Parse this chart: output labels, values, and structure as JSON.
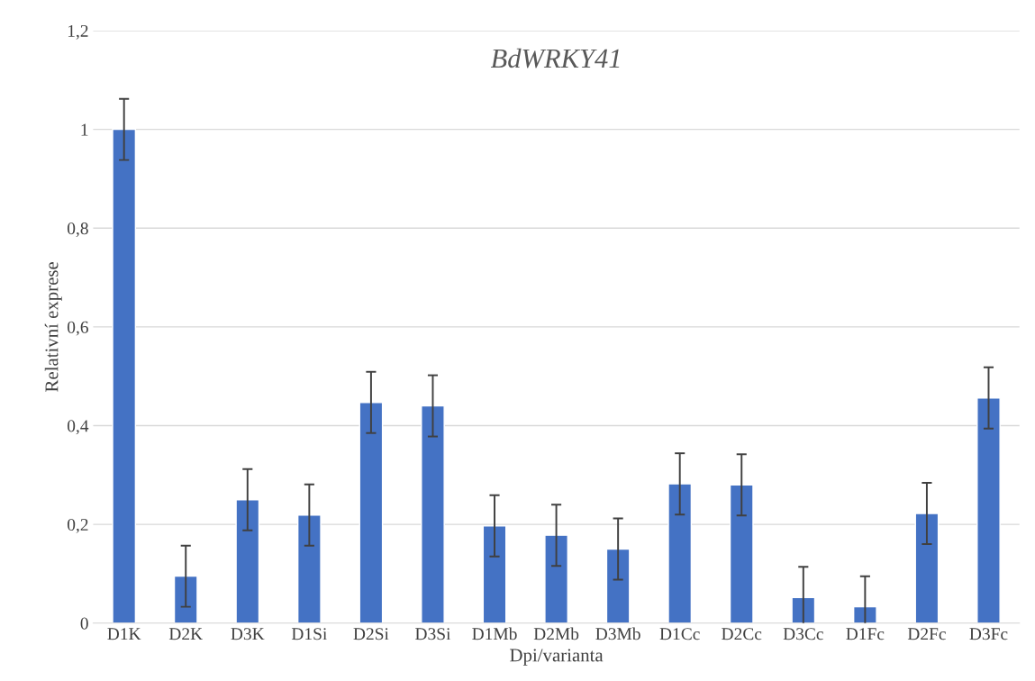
{
  "chart_data": {
    "type": "bar",
    "title": "BdWRKY41",
    "xlabel": "Dpi/varianta",
    "ylabel": "Relativní exprese",
    "categories": [
      "D1K",
      "D2K",
      "D3K",
      "D1Si",
      "D2Si",
      "D3Si",
      "D1Mb",
      "D2Mb",
      "D3Mb",
      "D1Cc",
      "D2Cc",
      "D3Cc",
      "D1Fc",
      "D2Fc",
      "D3Fc"
    ],
    "values": [
      1.0,
      0.095,
      0.25,
      0.219,
      0.447,
      0.44,
      0.197,
      0.178,
      0.15,
      0.282,
      0.28,
      0.052,
      0.033,
      0.222,
      0.456
    ],
    "errors": [
      0.062,
      0.062,
      0.062,
      0.062,
      0.062,
      0.062,
      0.062,
      0.062,
      0.062,
      0.062,
      0.062,
      0.062,
      0.062,
      0.062,
      0.062
    ],
    "color": "#4472c4",
    "ylim": [
      0,
      1.2
    ],
    "yticks": [
      0,
      {
        "value": 0.2,
        "label": "0,2"
      },
      {
        "value": 0.4,
        "label": "0,4"
      },
      {
        "value": 0.6,
        "label": "0,6"
      },
      {
        "value": 0.8,
        "label": "0,8"
      },
      1,
      {
        "value": 1.2,
        "label": "1,2"
      }
    ],
    "grid": "y"
  }
}
